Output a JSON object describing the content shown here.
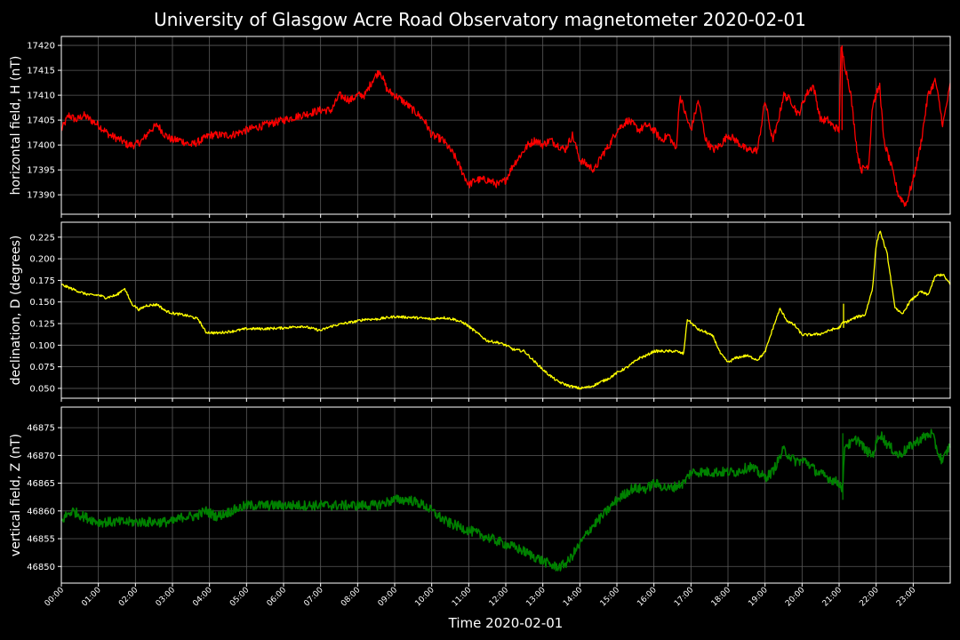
{
  "title": "University of Glasgow Acre Road Observatory magnetometer 2020-02-01",
  "xlabel": "Time 2020-02-01",
  "colors": {
    "background": "#000000",
    "grid": "#5a5a5a",
    "text": "#ffffff"
  },
  "chart_data": [
    {
      "type": "line",
      "ylabel": "horizontal field, H (nT)",
      "color": "#ff0000",
      "grid": true,
      "ylim": [
        17386.1,
        17421.8
      ],
      "yticks": [
        17390,
        17395,
        17400,
        17405,
        17410,
        17415,
        17420
      ],
      "xlim": [
        0,
        24
      ],
      "xticks": [
        "00:00",
        "01:00",
        "02:00",
        "03:00",
        "04:00",
        "05:00",
        "06:00",
        "07:00",
        "08:00",
        "09:00",
        "10:00",
        "11:00",
        "12:00",
        "13:00",
        "14:00",
        "15:00",
        "16:00",
        "17:00",
        "18:00",
        "19:00",
        "20:00",
        "21:00",
        "22:00",
        "23:00"
      ],
      "noise": 0.8,
      "x": [
        0,
        0.2,
        0.4,
        0.6,
        0.8,
        1.0,
        1.3,
        1.6,
        1.8,
        2.0,
        2.2,
        2.4,
        2.6,
        2.8,
        3.0,
        3.2,
        3.5,
        3.8,
        4.0,
        4.3,
        4.6,
        5.0,
        5.5,
        6.0,
        6.5,
        7.0,
        7.3,
        7.5,
        7.8,
        8.0,
        8.2,
        8.4,
        8.6,
        8.8,
        9.0,
        9.2,
        9.5,
        9.8,
        10.0,
        10.3,
        10.6,
        10.8,
        11.0,
        11.2,
        11.5,
        11.8,
        12.0,
        12.2,
        12.4,
        12.6,
        12.8,
        13.0,
        13.2,
        13.4,
        13.6,
        13.8,
        14.0,
        14.2,
        14.4,
        14.6,
        14.8,
        15.0,
        15.3,
        15.6,
        15.8,
        16.0,
        16.2,
        16.4,
        16.6,
        16.7,
        16.9,
        17.0,
        17.2,
        17.4,
        17.6,
        17.8,
        18.0,
        18.2,
        18.5,
        18.8,
        19.0,
        19.2,
        19.3,
        19.5,
        19.7,
        19.9,
        20.1,
        20.3,
        20.5,
        20.7,
        20.8,
        21.0,
        21.05,
        21.1,
        21.3,
        21.5,
        21.6,
        21.8,
        21.9,
        22.1,
        22.2,
        22.4,
        22.6,
        22.8,
        23.0,
        23.2,
        23.4,
        23.6,
        23.8,
        24.0
      ],
      "values": [
        17403,
        17406,
        17405,
        17406,
        17405,
        17404,
        17402,
        17401,
        17400,
        17400,
        17401,
        17403,
        17404,
        17402,
        17401,
        17401,
        17400,
        17401,
        17402,
        17402,
        17402,
        17403,
        17404,
        17405,
        17406,
        17407,
        17407,
        17410,
        17409,
        17410,
        17410,
        17413,
        17415,
        17411,
        17410,
        17409,
        17407,
        17405,
        17402,
        17401,
        17398,
        17395,
        17392,
        17393,
        17393,
        17392,
        17393,
        17396,
        17398,
        17400,
        17401,
        17400,
        17401,
        17400,
        17399,
        17402,
        17397,
        17396,
        17395,
        17398,
        17400,
        17403,
        17405,
        17403,
        17404,
        17403,
        17401,
        17402,
        17399,
        17410,
        17405,
        17403,
        17409,
        17401,
        17399,
        17400,
        17402,
        17401,
        17399,
        17399,
        17409,
        17401,
        17403,
        17410,
        17409,
        17406,
        17410,
        17412,
        17405,
        17405,
        17404,
        17403,
        17419,
        17418,
        17411,
        17398,
        17395,
        17396,
        17408,
        17412,
        17401,
        17396,
        17390,
        17388,
        17393,
        17400,
        17410,
        17413,
        17404,
        17412
      ],
      "extras": [
        [
          21.08,
          17403,
          17420
        ]
      ]
    },
    {
      "type": "line",
      "ylabel": "declination, D (degrees)",
      "color": "#ffff00",
      "grid": true,
      "ylim": [
        0.0386,
        0.2423
      ],
      "yticks": [
        0.05,
        0.075,
        0.1,
        0.125,
        0.15,
        0.175,
        0.2,
        0.225
      ],
      "xlim": [
        0,
        24
      ],
      "noise": 0.0015,
      "x": [
        0,
        0.3,
        0.6,
        0.8,
        1.0,
        1.2,
        1.5,
        1.7,
        1.9,
        2.1,
        2.3,
        2.6,
        2.8,
        3.0,
        3.3,
        3.5,
        3.7,
        3.9,
        4.2,
        4.6,
        5.0,
        5.5,
        6.0,
        6.5,
        7.0,
        7.3,
        7.6,
        7.9,
        8.2,
        8.5,
        9.0,
        9.5,
        9.8,
        10.0,
        10.3,
        10.6,
        10.9,
        11.2,
        11.5,
        11.8,
        12.0,
        12.2,
        12.5,
        12.8,
        13.1,
        13.4,
        13.7,
        14.0,
        14.3,
        14.6,
        14.8,
        15.0,
        15.3,
        15.6,
        15.8,
        16.0,
        16.3,
        16.6,
        16.8,
        16.9,
        17.2,
        17.4,
        17.6,
        17.8,
        18.0,
        18.2,
        18.5,
        18.8,
        19.0,
        19.2,
        19.4,
        19.6,
        19.8,
        20.0,
        20.2,
        20.5,
        20.8,
        21.0,
        21.1,
        21.2,
        21.5,
        21.7,
        21.9,
        22.0,
        22.1,
        22.3,
        22.5,
        22.7,
        22.9,
        23.2,
        23.4,
        23.6,
        23.8,
        24.0
      ],
      "values": [
        0.17,
        0.165,
        0.16,
        0.158,
        0.158,
        0.155,
        0.158,
        0.166,
        0.148,
        0.141,
        0.146,
        0.147,
        0.14,
        0.137,
        0.135,
        0.133,
        0.13,
        0.115,
        0.114,
        0.116,
        0.119,
        0.119,
        0.12,
        0.122,
        0.117,
        0.122,
        0.125,
        0.127,
        0.13,
        0.13,
        0.133,
        0.132,
        0.131,
        0.13,
        0.132,
        0.13,
        0.125,
        0.115,
        0.105,
        0.103,
        0.1,
        0.095,
        0.093,
        0.08,
        0.068,
        0.058,
        0.053,
        0.05,
        0.052,
        0.058,
        0.062,
        0.068,
        0.075,
        0.085,
        0.088,
        0.093,
        0.093,
        0.093,
        0.09,
        0.13,
        0.118,
        0.115,
        0.11,
        0.09,
        0.08,
        0.085,
        0.088,
        0.083,
        0.092,
        0.118,
        0.142,
        0.128,
        0.123,
        0.112,
        0.112,
        0.113,
        0.118,
        0.12,
        0.126,
        0.127,
        0.133,
        0.135,
        0.165,
        0.215,
        0.233,
        0.205,
        0.145,
        0.135,
        0.15,
        0.162,
        0.158,
        0.18,
        0.182,
        0.17
      ],
      "extras": [
        [
          21.12,
          0.12,
          0.148
        ]
      ]
    },
    {
      "type": "line",
      "ylabel": "vertical field, Z (nT)",
      "color": "#008000",
      "grid": true,
      "ylim": [
        46847.0,
        46878.7
      ],
      "yticks": [
        46850,
        46855,
        46860,
        46865,
        46870,
        46875
      ],
      "xlim": [
        0,
        24
      ],
      "noise": 0.9,
      "x": [
        0,
        0.1,
        0.3,
        0.6,
        1.0,
        1.3,
        1.6,
        2.0,
        2.4,
        2.8,
        3.0,
        3.3,
        3.6,
        3.9,
        4.2,
        4.6,
        5.0,
        5.5,
        6.0,
        6.5,
        7.0,
        7.5,
        8.0,
        8.5,
        9.0,
        9.4,
        9.8,
        10.0,
        10.4,
        10.8,
        11.2,
        11.6,
        12.0,
        12.4,
        12.7,
        13.0,
        13.3,
        13.5,
        13.7,
        14.0,
        14.3,
        14.6,
        15.0,
        15.4,
        15.8,
        16.0,
        16.4,
        16.8,
        17.0,
        17.4,
        17.8,
        18.2,
        18.6,
        19.0,
        19.2,
        19.5,
        19.8,
        20.1,
        20.4,
        20.7,
        21.0,
        21.1,
        21.15,
        21.3,
        21.5,
        21.7,
        21.9,
        22.1,
        22.3,
        22.6,
        22.8,
        23.0,
        23.2,
        23.5,
        23.7,
        23.8,
        24.0
      ],
      "values": [
        46858,
        46859,
        46860,
        46859,
        46858,
        46858,
        46858,
        46858,
        46858,
        46858,
        46858,
        46859,
        46859,
        46860,
        46859,
        46860,
        46861,
        46861,
        46861,
        46861,
        46861,
        46861,
        46861,
        46861,
        46862,
        46862,
        46861,
        46860,
        46858,
        46857,
        46856,
        46855,
        46854,
        46853,
        46852,
        46851,
        46850,
        46850,
        46851,
        46854,
        46857,
        46859,
        46862,
        46864,
        46864,
        46865,
        46864,
        46865,
        46867,
        46867,
        46867,
        46867,
        46868,
        46866,
        46867,
        46871,
        46869,
        46869,
        46867,
        46866,
        46865,
        46864,
        46872,
        46872,
        46873,
        46871,
        46870,
        46874,
        46872,
        46870,
        46871,
        46872,
        46873,
        46874,
        46870,
        46869,
        46872
      ],
      "extras": [
        [
          21.1,
          46862,
          46874
        ]
      ]
    }
  ]
}
